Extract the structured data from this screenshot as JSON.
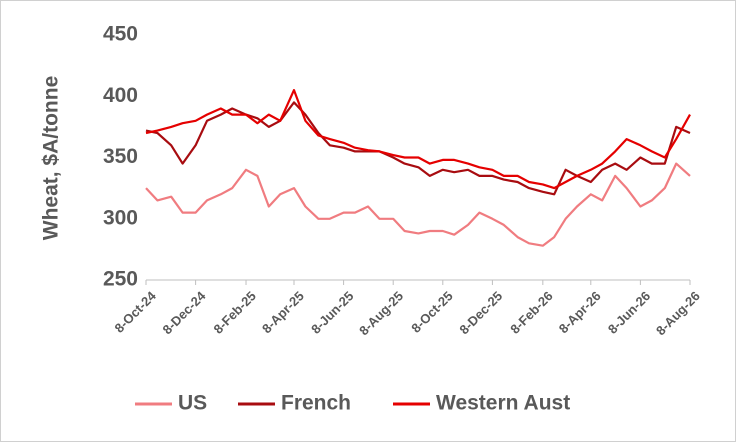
{
  "chart_data": {
    "type": "line",
    "y_label": "Wheat, $A/tonne",
    "x": [
      "2024-10-08",
      "2024-10-22",
      "2024-11-08",
      "2024-11-22",
      "2024-12-08",
      "2024-12-22",
      "2025-01-08",
      "2025-01-22",
      "2025-02-08",
      "2025-02-22",
      "2025-03-08",
      "2025-03-22",
      "2025-04-08",
      "2025-04-22",
      "2025-05-08",
      "2025-05-22",
      "2025-06-08",
      "2025-06-22",
      "2025-07-08",
      "2025-07-22",
      "2025-08-08",
      "2025-08-22",
      "2025-09-08",
      "2025-09-22",
      "2025-10-08",
      "2025-10-22",
      "2025-11-08",
      "2025-11-22",
      "2025-12-08",
      "2025-12-22",
      "2026-01-08",
      "2026-01-22",
      "2026-02-08",
      "2026-02-22",
      "2026-03-08",
      "2026-03-22",
      "2026-04-08",
      "2026-04-22",
      "2026-05-08",
      "2026-05-22",
      "2026-06-08",
      "2026-06-22",
      "2026-07-08",
      "2026-07-22",
      "2026-08-08"
    ],
    "series": [
      {
        "name": "US",
        "color": "#f07c80",
        "values": [
          325,
          315,
          318,
          305,
          305,
          315,
          320,
          325,
          340,
          335,
          310,
          320,
          325,
          310,
          300,
          300,
          305,
          305,
          310,
          300,
          300,
          290,
          288,
          290,
          290,
          287,
          295,
          305,
          300,
          295,
          285,
          280,
          278,
          285,
          300,
          310,
          320,
          315,
          335,
          325,
          310,
          315,
          325,
          345,
          335
        ]
      },
      {
        "name": "French",
        "color": "#a80c10",
        "values": [
          372,
          370,
          360,
          345,
          360,
          380,
          385,
          390,
          385,
          382,
          375,
          380,
          395,
          385,
          370,
          360,
          358,
          355,
          355,
          355,
          350,
          345,
          342,
          335,
          340,
          338,
          340,
          335,
          335,
          332,
          330,
          325,
          322,
          320,
          340,
          335,
          330,
          340,
          345,
          340,
          350,
          345,
          345,
          375,
          370
        ]
      },
      {
        "name": "Western Aust",
        "color": "#e50000",
        "values": [
          370,
          372,
          375,
          378,
          380,
          385,
          390,
          385,
          385,
          378,
          385,
          380,
          405,
          380,
          368,
          365,
          362,
          358,
          356,
          355,
          352,
          350,
          350,
          345,
          348,
          348,
          345,
          342,
          340,
          335,
          335,
          330,
          328,
          325,
          330,
          335,
          340,
          345,
          355,
          365,
          360,
          355,
          350,
          365,
          385
        ]
      }
    ],
    "xlim": [
      "2024-10-08",
      "2026-08-08"
    ],
    "xticks": [
      {
        "value": "2024-10-08",
        "label": "8-Oct-24"
      },
      {
        "value": "2024-12-08",
        "label": "8-Dec-24"
      },
      {
        "value": "2025-02-08",
        "label": "8-Feb-25"
      },
      {
        "value": "2025-04-08",
        "label": "8-Apr-25"
      },
      {
        "value": "2025-06-08",
        "label": "8-Jun-25"
      },
      {
        "value": "2025-08-08",
        "label": "8-Aug-25"
      },
      {
        "value": "2025-10-08",
        "label": "8-Oct-25"
      },
      {
        "value": "2025-12-08",
        "label": "8-Dec-25"
      },
      {
        "value": "2026-02-08",
        "label": "8-Feb-26"
      },
      {
        "value": "2026-04-08",
        "label": "8-Apr-26"
      },
      {
        "value": "2026-06-08",
        "label": "8-Jun-26"
      },
      {
        "value": "2026-08-08",
        "label": "8-Aug-26"
      }
    ],
    "ylim": [
      250,
      450
    ],
    "yticks": [
      250,
      300,
      350,
      400,
      450
    ],
    "grid": false,
    "legend": "bottom"
  }
}
